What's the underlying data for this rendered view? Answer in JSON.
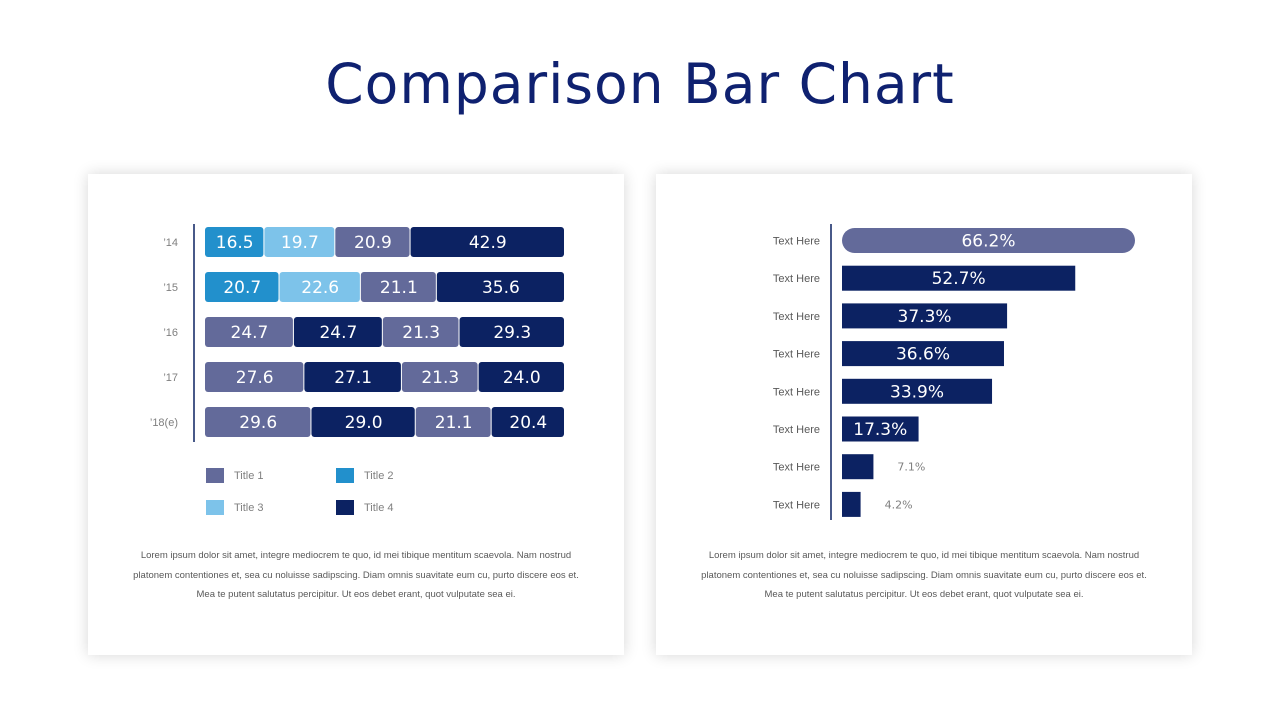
{
  "slide": {
    "title": "Comparison Bar Chart"
  },
  "colors": {
    "title_1": "#636a9a",
    "title_2": "#2290cc",
    "title_3": "#7dc3ea",
    "title_4": "#0c2262",
    "axis": "#0c2262",
    "label": "#7f7f7f"
  },
  "chart_data": [
    {
      "type": "bar",
      "orientation": "horizontal",
      "stacked": true,
      "categories": [
        "’14",
        "’15",
        "’16",
        "’17",
        "’18(e)"
      ],
      "segments": [
        [
          {
            "series": "Title 2",
            "value": 16.5
          },
          {
            "series": "Title 3",
            "value": 19.7
          },
          {
            "series": "Title 1",
            "value": 20.9
          },
          {
            "series": "Title 4",
            "value": 42.9
          }
        ],
        [
          {
            "series": "Title 2",
            "value": 20.7
          },
          {
            "series": "Title 3",
            "value": 22.6
          },
          {
            "series": "Title 1",
            "value": 21.1
          },
          {
            "series": "Title 4",
            "value": 35.6
          }
        ],
        [
          {
            "series": "Title 1",
            "value": 24.7
          },
          {
            "series": "Title 4",
            "value": 24.7
          },
          {
            "series": "Title 1",
            "value": 21.3
          },
          {
            "series": "Title 4",
            "value": 29.3
          }
        ],
        [
          {
            "series": "Title 1",
            "value": 27.6
          },
          {
            "series": "Title 4",
            "value": 27.1
          },
          {
            "series": "Title 1",
            "value": 21.3
          },
          {
            "series": "Title 4",
            "value": 24.0
          }
        ],
        [
          {
            "series": "Title 1",
            "value": 29.6
          },
          {
            "series": "Title 4",
            "value": 29.0
          },
          {
            "series": "Title 1",
            "value": 21.1
          },
          {
            "series": "Title 4",
            "value": 20.4
          }
        ]
      ],
      "labels": [
        [
          "16.5",
          "19.7",
          "20.9",
          "42.9"
        ],
        [
          "20.7",
          "22.6",
          "21.1",
          "35.6"
        ],
        [
          "24.7",
          "24.7",
          "21.3",
          "29.3"
        ],
        [
          "27.6",
          "27.1",
          "21.3",
          "24.0"
        ],
        [
          "29.6",
          "29.0",
          "21.1",
          "20.4"
        ]
      ],
      "legend": [
        {
          "name": "Title 1",
          "color": "#636a9a"
        },
        {
          "name": "Title 2",
          "color": "#2290cc"
        },
        {
          "name": "Title 3",
          "color": "#7dc3ea"
        },
        {
          "name": "Title 4",
          "color": "#0c2262"
        }
      ],
      "legend_position": "bottom",
      "grid": false
    },
    {
      "type": "bar",
      "orientation": "horizontal",
      "categories": [
        "Text Here",
        "Text Here",
        "Text Here",
        "Text Here",
        "Text Here",
        "Text Here",
        "Text Here",
        "Text Here"
      ],
      "values": [
        66.2,
        52.7,
        37.3,
        36.6,
        33.9,
        17.3,
        7.1,
        4.2
      ],
      "value_labels": [
        "66.2%",
        "52.7%",
        "37.3%",
        "36.6%",
        "33.9%",
        "17.3%",
        "7.1%",
        "4.2%"
      ],
      "unit": "%",
      "xlim": [
        0,
        66.2
      ],
      "highlight_index": 0,
      "highlight_color": "#636a9a",
      "bar_color": "#0c2262",
      "grid": false
    }
  ],
  "paragraphs": {
    "left": "Lorem ipsum dolor sit amet, integre mediocrem te quo, id mei tibique mentitum scaevola. Nam nostrud platonem contentiones et, sea cu noluisse sadipscing. Diam omnis suavitate eum cu, purto discere eos et. Mea te putent salutatus percipitur. Ut eos debet erant, quot vulputate sea ei.",
    "right": "Lorem ipsum dolor sit amet, integre mediocrem te quo, id mei tibique mentitum scaevola. Nam nostrud platonem contentiones et, sea cu noluisse sadipscing. Diam omnis suavitate eum cu, purto discere eos et. Mea te putent salutatus percipitur. Ut eos debet erant, quot vulputate sea ei."
  }
}
